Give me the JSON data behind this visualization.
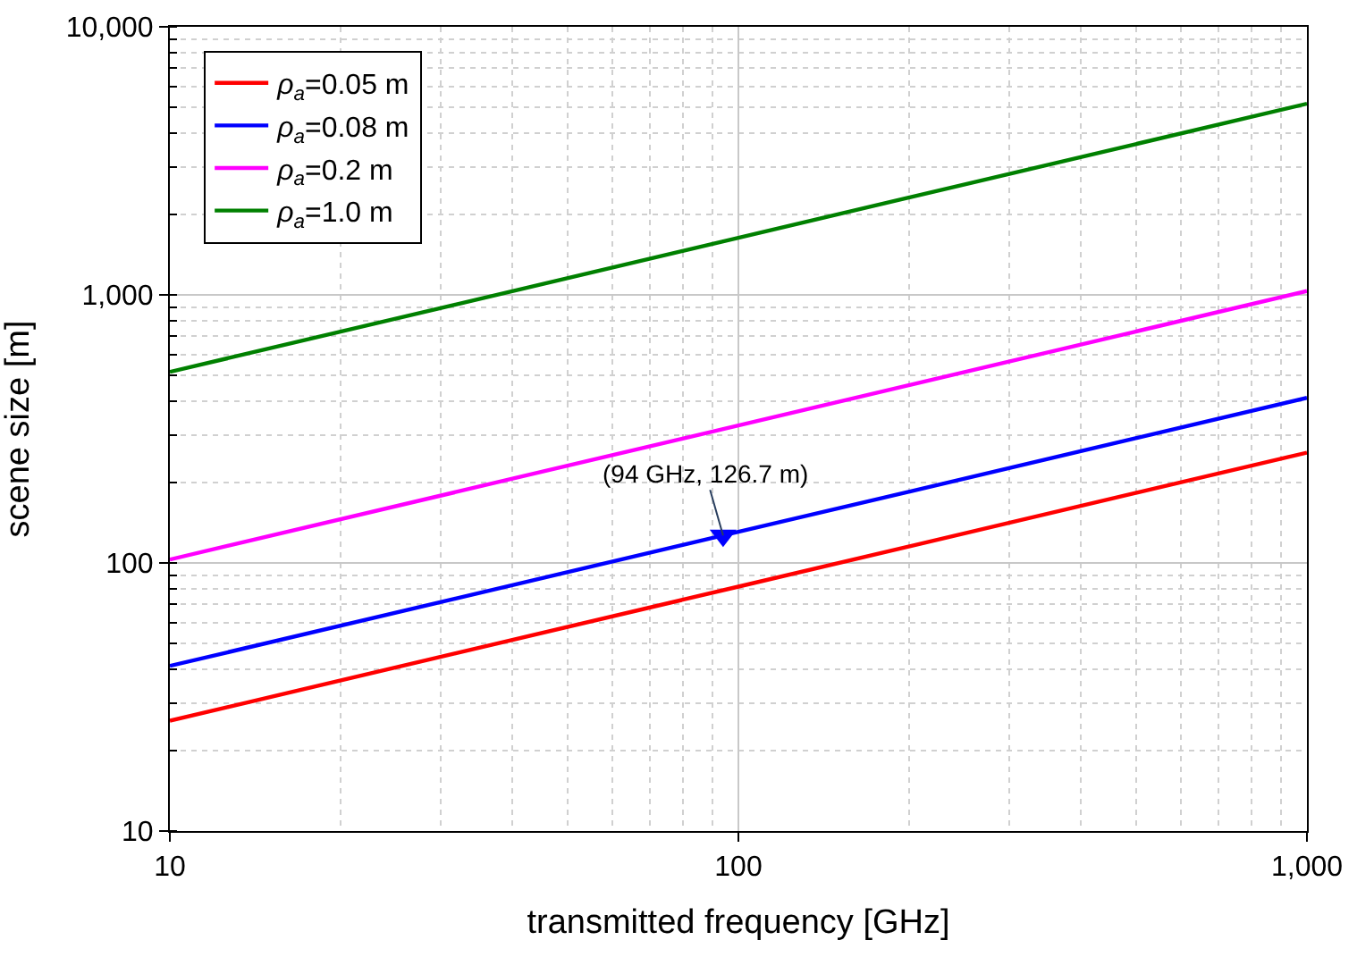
{
  "chart_data": {
    "type": "line",
    "xlabel": "transmitted frequency [GHz]",
    "ylabel": "scene size [m]",
    "x": [
      10,
      100,
      1000
    ],
    "series": [
      {
        "name": "ρ$_{a}$=0.05 m",
        "color": "#ff0000",
        "values": [
          25.8,
          81.6,
          258
        ]
      },
      {
        "name": "ρ$_{a}$=0.08 m",
        "color": "#0000ff",
        "values": [
          41.3,
          130.6,
          413
        ]
      },
      {
        "name": "ρ$_{a}$=0.2 m",
        "color": "#ff00ff",
        "values": [
          103,
          326,
          1033
        ]
      },
      {
        "name": "ρ$_{a}$=1.0 m",
        "color": "#008000",
        "values": [
          516,
          1633,
          5164
        ]
      },
      {
        "type": "scatter",
        "marker": "triangle",
        "color": "#0000ff",
        "x": [
          94
        ],
        "values": [
          126.7
        ]
      }
    ],
    "annotations": [
      {
        "text": "(94 GHz, 126.7 m)",
        "x": 94,
        "y": 126.7
      }
    ],
    "log": "xy",
    "xlim": [
      10,
      1000
    ],
    "ylim": [
      10,
      10000
    ],
    "xticks": [
      10,
      100,
      {
        "value": 1000,
        "label": "1,000"
      }
    ],
    "yticks": [
      10,
      100,
      {
        "value": 1000,
        "label": "1,000"
      },
      {
        "value": 10000,
        "label": "10,000"
      }
    ],
    "grid": true,
    "legend": "top left",
    "marker": "none",
    "line_style": "solid"
  }
}
